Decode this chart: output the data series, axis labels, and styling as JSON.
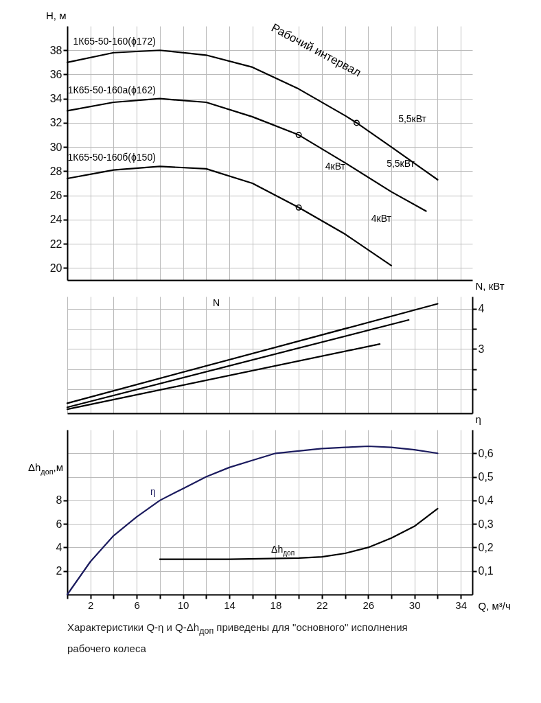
{
  "chart_data": [
    {
      "type": "line",
      "xlim": [
        0,
        35
      ],
      "xticks": [
        {
          "value": 0,
          "label": null
        },
        2,
        {
          "value": 4,
          "label": null
        },
        6,
        {
          "value": 8,
          "label": null
        },
        10,
        {
          "value": 12,
          "label": null
        },
        14,
        {
          "value": 16,
          "label": null
        },
        18,
        {
          "value": 20,
          "label": null
        },
        22,
        {
          "value": 24,
          "label": null
        },
        26,
        {
          "value": 28,
          "label": null
        },
        30,
        {
          "value": 32,
          "label": null
        },
        34
      ],
      "ylim": [
        19,
        40
      ],
      "yticks": [
        20,
        22,
        24,
        26,
        28,
        30,
        32,
        34,
        36,
        38
      ],
      "ylabel": "H, м",
      "grid": true,
      "tick_labels": "y",
      "series": [
        {
          "name": "1К65-50-160(ϕ172)",
          "color": "#000000",
          "x": [
            0,
            4,
            8,
            12,
            16,
            20,
            24,
            25,
            28,
            32
          ],
          "values": [
            37,
            37.8,
            38,
            37.6,
            36.6,
            34.8,
            32.6,
            32,
            30,
            27.3
          ]
        },
        {
          "name": "1К65-50-160а(ϕ162)",
          "color": "#000000",
          "x": [
            0,
            4,
            8,
            12,
            16,
            20,
            24,
            28,
            31
          ],
          "values": [
            33,
            33.7,
            34,
            33.7,
            32.5,
            31,
            28.7,
            26.3,
            24.7
          ]
        },
        {
          "name": "1К65-50-160б(ϕ150)",
          "color": "#000000",
          "x": [
            0,
            4,
            8,
            12,
            16,
            20,
            24,
            28
          ],
          "values": [
            27.4,
            28.1,
            28.4,
            28.2,
            27,
            25,
            22.8,
            20.2
          ]
        },
        {
          "type": "scatter",
          "color": "#000000",
          "marker": "circle",
          "x": [
            25,
            20,
            20
          ],
          "values": [
            32,
            31,
            25
          ]
        }
      ],
      "annotations": [
        "Рабочий интервал",
        "5,5кВт",
        "5,5кВт",
        "4кВт",
        "4кВт"
      ]
    },
    {
      "type": "line",
      "xlim": [
        0,
        35
      ],
      "xticks": [
        {
          "value": 0,
          "label": null
        },
        2,
        {
          "value": 4,
          "label": null
        },
        6,
        {
          "value": 8,
          "label": null
        },
        10,
        {
          "value": 12,
          "label": null
        },
        14,
        {
          "value": 16,
          "label": null
        },
        18,
        {
          "value": 20,
          "label": null
        },
        22,
        {
          "value": 24,
          "label": null
        },
        26,
        {
          "value": 28,
          "label": null
        },
        30,
        {
          "value": 32,
          "label": null
        },
        34
      ],
      "y2lim": [
        1.4,
        4.3
      ],
      "y2ticks": [
        {
          "value": 2,
          "label": null
        },
        {
          "value": 2.5,
          "label": null
        },
        3,
        {
          "value": 3.5,
          "label": null
        },
        4
      ],
      "y2label": "N, кВт",
      "grid": true,
      "tick_labels": "y",
      "series": [
        {
          "color": "#000000",
          "axis": "y2",
          "x": [
            0,
            32
          ],
          "values": [
            1.65,
            4.12
          ]
        },
        {
          "color": "#000000",
          "axis": "y2",
          "x": [
            0,
            29.5
          ],
          "values": [
            1.55,
            3.72
          ]
        },
        {
          "color": "#000000",
          "axis": "y2",
          "x": [
            0,
            27
          ],
          "values": [
            1.5,
            3.12
          ]
        }
      ],
      "annotations": [
        "N"
      ]
    },
    {
      "type": "line",
      "xlim": [
        0,
        35
      ],
      "xticks": [
        {
          "value": 0,
          "label": null
        },
        2,
        {
          "value": 4,
          "label": null
        },
        6,
        {
          "value": 8,
          "label": null
        },
        10,
        {
          "value": 12,
          "label": null
        },
        14,
        {
          "value": 16,
          "label": null
        },
        18,
        {
          "value": 20,
          "label": null
        },
        22,
        {
          "value": 24,
          "label": null
        },
        26,
        {
          "value": 28,
          "label": null
        },
        30,
        {
          "value": 32,
          "label": null
        },
        34
      ],
      "xlabel": "Q, м³/ч",
      "ylim": [
        0,
        14
      ],
      "yticks": [
        2,
        4,
        6,
        8
      ],
      "ylabel": "Δh$_{доп}$,м",
      "y2lim": [
        0,
        0.7
      ],
      "y2ticks": [
        {
          "value": 0.1,
          "label": "0,1"
        },
        {
          "value": 0.2,
          "label": "0,2"
        },
        {
          "value": 0.3,
          "label": "0,3"
        },
        {
          "value": 0.4,
          "label": "0,4"
        },
        {
          "value": 0.5,
          "label": "0,5"
        },
        {
          "value": 0.6,
          "label": "0,6"
        }
      ],
      "y2label": "η",
      "grid": true,
      "series": [
        {
          "name": "η",
          "color": "#1b1b5e",
          "axis": "y2",
          "x": [
            0,
            2,
            4,
            6,
            8,
            10,
            12,
            14,
            16,
            18,
            20,
            22,
            24,
            26,
            28,
            30,
            32
          ],
          "values": [
            0,
            0.14,
            0.25,
            0.33,
            0.4,
            0.45,
            0.5,
            0.54,
            0.57,
            0.6,
            0.61,
            0.62,
            0.625,
            0.63,
            0.625,
            0.615,
            0.6
          ]
        },
        {
          "name": "Δh$_{доп}$",
          "color": "#000000",
          "x": [
            8,
            14,
            20,
            22,
            24,
            26,
            28,
            30,
            32
          ],
          "values": [
            3,
            3,
            3.1,
            3.2,
            3.5,
            4,
            4.8,
            5.8,
            7.3
          ]
        }
      ],
      "annotations": [
        "Характеристики Q-η и Q-Δh$_{доп}$ приведены для \"основного\" исполнения рабочего колеса"
      ]
    }
  ]
}
